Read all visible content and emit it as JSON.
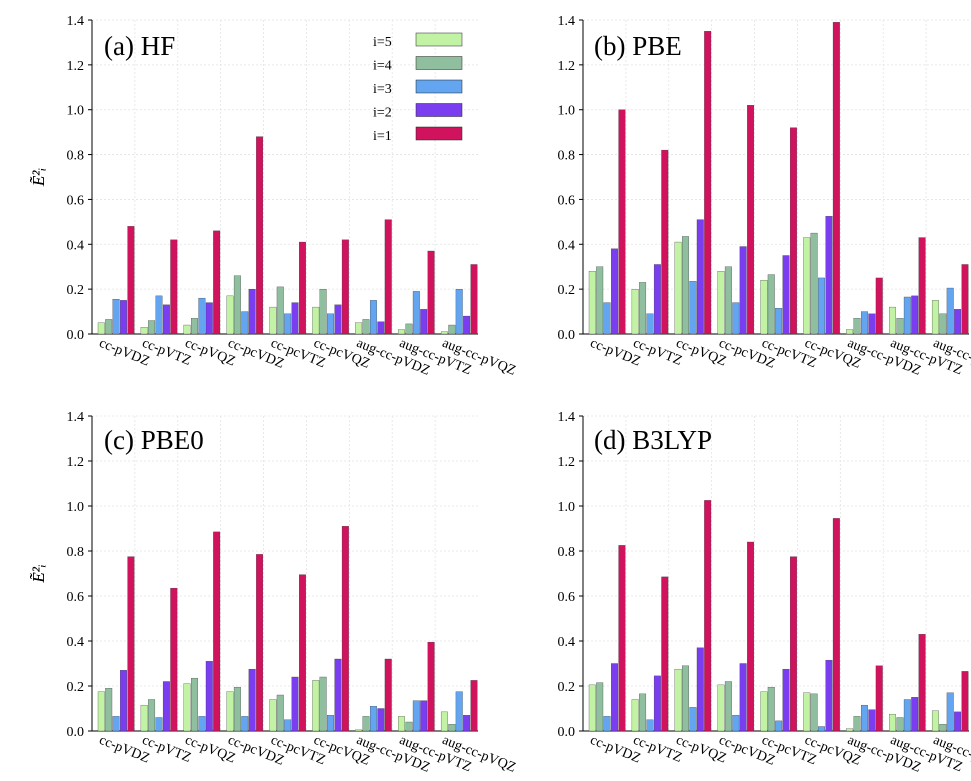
{
  "colors": {
    "i5": "#c2f2a4",
    "i4": "#8fbf9f",
    "i3": "#63a5f0",
    "i2": "#7a3ef0",
    "i1": "#d1135e",
    "grid": "#e3e3e3",
    "axis": "#000000"
  },
  "legend": {
    "entries": [
      "i=5",
      "i=4",
      "i=3",
      "i=2",
      "i=1"
    ]
  },
  "chart_data": [
    {
      "type": "bar",
      "panel_label": "(a)  HF",
      "ylabel": "Ẽ²ᵢ",
      "ylim": [
        0,
        1.4
      ],
      "yticks": [
        "0.0",
        "0.2",
        "0.4",
        "0.6",
        "0.8",
        "1.0",
        "1.2",
        "1.4"
      ],
      "grid": true,
      "legend_position": "top-right",
      "categories": [
        "cc-pVDZ",
        "cc-pVTZ",
        "cc-pVQZ",
        "cc-pcVDZ",
        "cc-pcVTZ",
        "cc-pcVQZ",
        "aug-cc-pVDZ",
        "aug-cc-pVTZ",
        "aug-cc-pVQZ"
      ],
      "series": [
        {
          "name": "i=5",
          "values": [
            0.05,
            0.03,
            0.04,
            0.17,
            0.12,
            0.12,
            0.05,
            0.02,
            0.01
          ]
        },
        {
          "name": "i=4",
          "values": [
            0.065,
            0.06,
            0.07,
            0.26,
            0.21,
            0.2,
            0.065,
            0.045,
            0.04
          ]
        },
        {
          "name": "i=3",
          "values": [
            0.155,
            0.17,
            0.16,
            0.1,
            0.09,
            0.09,
            0.15,
            0.19,
            0.2
          ]
        },
        {
          "name": "i=2",
          "values": [
            0.15,
            0.13,
            0.14,
            0.2,
            0.14,
            0.13,
            0.055,
            0.11,
            0.08
          ]
        },
        {
          "name": "i=1",
          "values": [
            0.48,
            0.42,
            0.46,
            0.88,
            0.41,
            0.42,
            0.51,
            0.37,
            0.31
          ]
        }
      ]
    },
    {
      "type": "bar",
      "panel_label": "(b)  PBE",
      "ylabel": "Ẽ²ᵢ",
      "ylim": [
        0,
        1.4
      ],
      "yticks": [
        "0.0",
        "0.2",
        "0.4",
        "0.6",
        "0.8",
        "1.0",
        "1.2",
        "1.4"
      ],
      "grid": true,
      "categories": [
        "cc-pVDZ",
        "cc-pVTZ",
        "cc-pVQZ",
        "cc-pcVDZ",
        "cc-pcVTZ",
        "cc-pcVQZ",
        "aug-cc-pVDZ",
        "aug-cc-pVTZ",
        "aug-cc-pVQZ"
      ],
      "series": [
        {
          "name": "i=5",
          "values": [
            0.28,
            0.2,
            0.41,
            0.28,
            0.24,
            0.43,
            0.02,
            0.12,
            0.15
          ]
        },
        {
          "name": "i=4",
          "values": [
            0.3,
            0.23,
            0.435,
            0.3,
            0.265,
            0.45,
            0.07,
            0.07,
            0.09
          ]
        },
        {
          "name": "i=3",
          "values": [
            0.14,
            0.09,
            0.235,
            0.14,
            0.115,
            0.25,
            0.1,
            0.165,
            0.205
          ]
        },
        {
          "name": "i=2",
          "values": [
            0.38,
            0.31,
            0.51,
            0.39,
            0.35,
            0.525,
            0.09,
            0.17,
            0.11
          ]
        },
        {
          "name": "i=1",
          "values": [
            1.0,
            0.82,
            1.35,
            1.02,
            0.92,
            1.39,
            0.25,
            0.43,
            0.31
          ]
        }
      ]
    },
    {
      "type": "bar",
      "panel_label": "(c)  PBE0",
      "ylabel": "Ẽ²ᵢ",
      "ylim": [
        0,
        1.4
      ],
      "yticks": [
        "0.0",
        "0.2",
        "0.4",
        "0.6",
        "0.8",
        "1.0",
        "1.2",
        "1.4"
      ],
      "grid": true,
      "categories": [
        "cc-pVDZ",
        "cc-pVTZ",
        "cc-pVQZ",
        "cc-pcVDZ",
        "cc-pcVTZ",
        "cc-pcVQZ",
        "aug-cc-pVDZ",
        "aug-cc-pVTZ",
        "aug-cc-pVQZ"
      ],
      "series": [
        {
          "name": "i=5",
          "values": [
            0.175,
            0.115,
            0.21,
            0.175,
            0.14,
            0.225,
            0.005,
            0.065,
            0.085
          ]
        },
        {
          "name": "i=4",
          "values": [
            0.19,
            0.14,
            0.235,
            0.195,
            0.16,
            0.24,
            0.065,
            0.04,
            0.03
          ]
        },
        {
          "name": "i=3",
          "values": [
            0.065,
            0.06,
            0.065,
            0.065,
            0.05,
            0.07,
            0.11,
            0.135,
            0.175
          ]
        },
        {
          "name": "i=2",
          "values": [
            0.27,
            0.22,
            0.31,
            0.275,
            0.24,
            0.32,
            0.1,
            0.135,
            0.07
          ]
        },
        {
          "name": "i=1",
          "values": [
            0.775,
            0.635,
            0.885,
            0.785,
            0.695,
            0.91,
            0.32,
            0.395,
            0.225
          ]
        }
      ]
    },
    {
      "type": "bar",
      "panel_label": "(d)  B3LYP",
      "ylabel": "Ẽ²ᵢ",
      "ylim": [
        0,
        1.4
      ],
      "yticks": [
        "0.0",
        "0.2",
        "0.4",
        "0.6",
        "0.8",
        "1.0",
        "1.2",
        "1.4"
      ],
      "grid": true,
      "categories": [
        "cc-pVDZ",
        "cc-pVTZ",
        "cc-pVQZ",
        "cc-pcVDZ",
        "cc-pcVTZ",
        "cc-pcVQZ",
        "aug-cc-pVDZ",
        "aug-cc-pVTZ",
        "aug-cc-pVQZ"
      ],
      "series": [
        {
          "name": "i=5",
          "values": [
            0.205,
            0.14,
            0.275,
            0.205,
            0.175,
            0.17,
            0.01,
            0.075,
            0.09
          ]
        },
        {
          "name": "i=4",
          "values": [
            0.215,
            0.165,
            0.29,
            0.22,
            0.195,
            0.165,
            0.065,
            0.06,
            0.03
          ]
        },
        {
          "name": "i=3",
          "values": [
            0.065,
            0.05,
            0.105,
            0.07,
            0.045,
            0.02,
            0.115,
            0.14,
            0.17
          ]
        },
        {
          "name": "i=2",
          "values": [
            0.3,
            0.245,
            0.37,
            0.3,
            0.275,
            0.315,
            0.095,
            0.15,
            0.085
          ]
        },
        {
          "name": "i=1",
          "values": [
            0.825,
            0.685,
            1.025,
            0.84,
            0.775,
            0.945,
            0.29,
            0.43,
            0.265
          ]
        }
      ]
    }
  ]
}
